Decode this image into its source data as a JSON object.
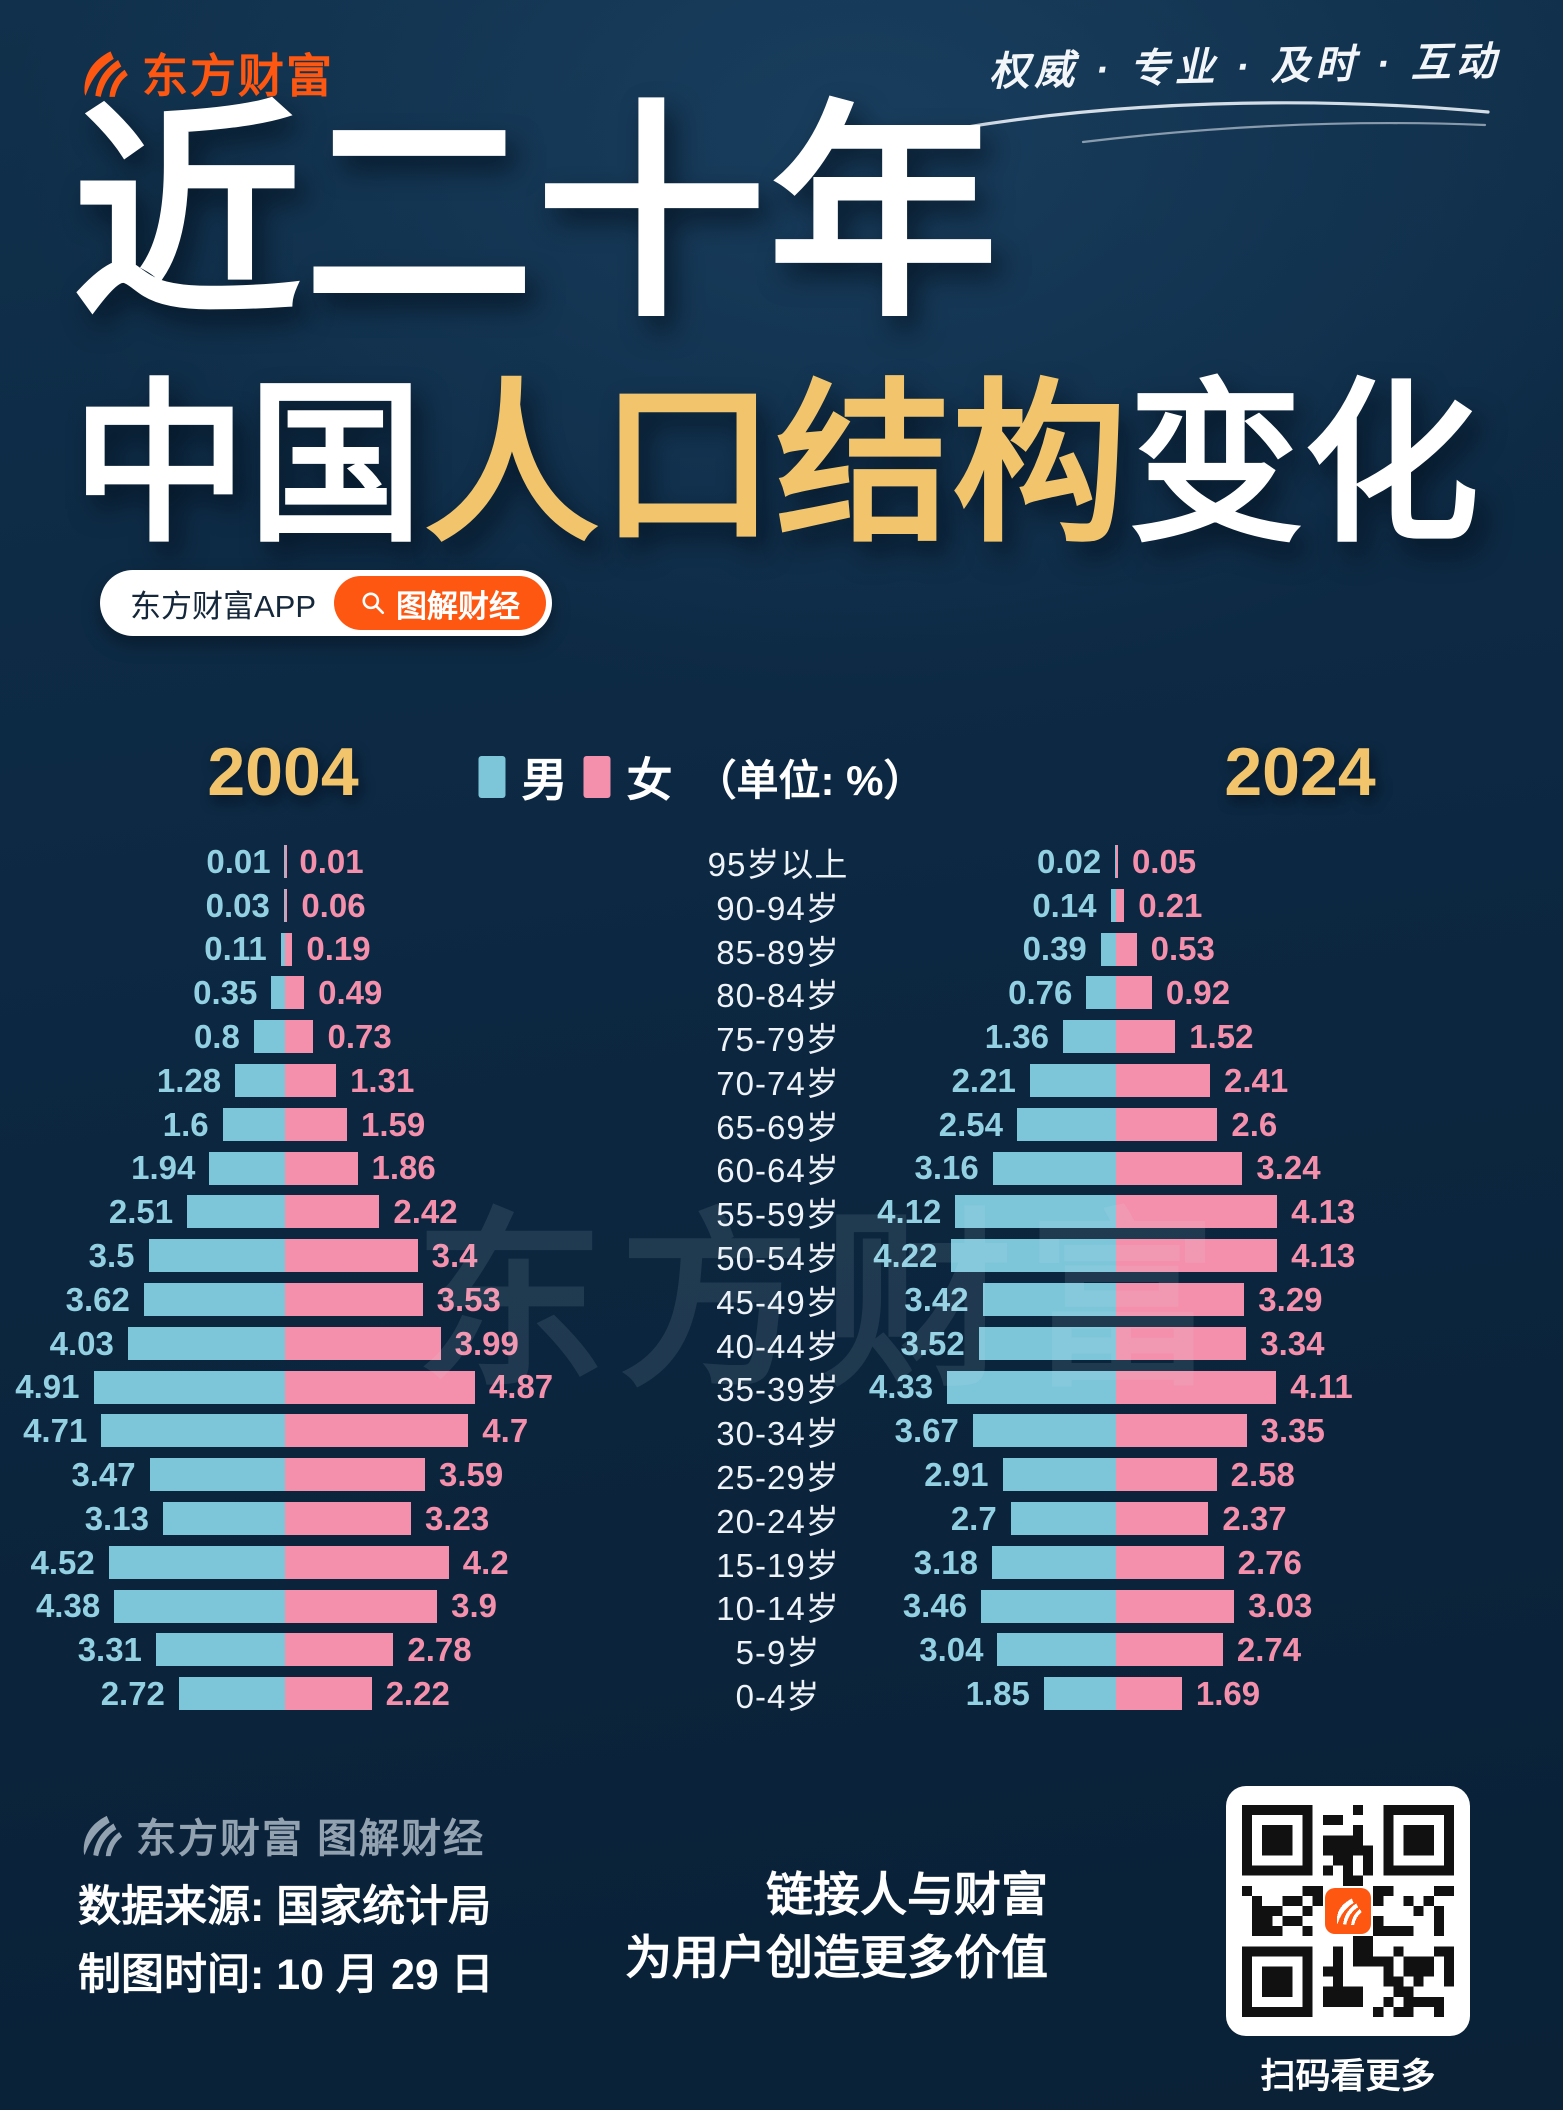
{
  "header": {
    "logo_text": "东方财富",
    "slogan": "权威 · 专业 · 及时 · 互动"
  },
  "title": {
    "line1": "近二十年",
    "line2_prefix": "中国",
    "line2_highlight": "人口结构",
    "line2_suffix": "变化"
  },
  "app_bar": {
    "app_label": "东方财富APP",
    "search_button_label": "图解财经"
  },
  "chart": {
    "left_year": "2004",
    "right_year": "2024",
    "legend_male": "男",
    "legend_female": "女",
    "legend_unit": "（单位: %）",
    "watermark": "东方财富"
  },
  "chart_data": {
    "type": "bar",
    "variant": "population-pyramid",
    "unit": "%",
    "legend_position": "top-center",
    "xlim_each_side": [
      0,
      5
    ],
    "categories": [
      "95岁以上",
      "90-94岁",
      "85-89岁",
      "80-84岁",
      "75-79岁",
      "70-74岁",
      "65-69岁",
      "60-64岁",
      "55-59岁",
      "50-54岁",
      "45-49岁",
      "40-44岁",
      "35-39岁",
      "30-34岁",
      "25-29岁",
      "20-24岁",
      "15-19岁",
      "10-14岁",
      "5-9岁",
      "0-4岁"
    ],
    "charts": [
      {
        "year": "2004",
        "series": [
          {
            "name": "男",
            "color": "#7dc6da",
            "values": [
              0.01,
              0.03,
              0.11,
              0.35,
              0.8,
              1.28,
              1.6,
              1.94,
              2.51,
              3.5,
              3.62,
              4.03,
              4.91,
              4.71,
              3.47,
              3.13,
              4.52,
              4.38,
              3.31,
              2.72
            ]
          },
          {
            "name": "女",
            "color": "#f48fac",
            "values": [
              0.01,
              0.06,
              0.19,
              0.49,
              0.73,
              1.31,
              1.59,
              1.86,
              2.42,
              3.4,
              3.53,
              3.99,
              4.87,
              4.7,
              3.59,
              3.23,
              4.2,
              3.9,
              2.78,
              2.22
            ]
          }
        ]
      },
      {
        "year": "2024",
        "series": [
          {
            "name": "男",
            "color": "#7dc6da",
            "values": [
              0.02,
              0.14,
              0.39,
              0.76,
              1.36,
              2.21,
              2.54,
              3.16,
              4.12,
              4.22,
              3.42,
              3.52,
              4.33,
              3.67,
              2.91,
              2.7,
              3.18,
              3.46,
              3.04,
              1.85
            ]
          },
          {
            "name": "女",
            "color": "#f48fac",
            "values": [
              0.05,
              0.21,
              0.53,
              0.92,
              1.52,
              2.41,
              2.6,
              3.24,
              4.13,
              4.13,
              3.29,
              3.34,
              4.11,
              3.35,
              2.58,
              2.37,
              2.76,
              3.03,
              2.74,
              1.69
            ]
          }
        ]
      }
    ]
  },
  "footer": {
    "brand_line": "东方财富 图解财经",
    "source_line": "数据来源: 国家统计局",
    "date_line": "制图时间: 10 月 29 日",
    "slogan_line1": "链接人与财富",
    "slogan_line2": "为用户创造更多价值",
    "qr_caption": "扫码看更多"
  },
  "colors": {
    "background_top": "#10304b",
    "background_bottom": "#0a2136",
    "accent_orange": "#fd5712",
    "accent_yellow": "#f2c56c",
    "male_blue": "#7dc6da",
    "female_pink": "#f48fac",
    "male_label": "#93d1e2",
    "female_label": "#f48fac"
  }
}
